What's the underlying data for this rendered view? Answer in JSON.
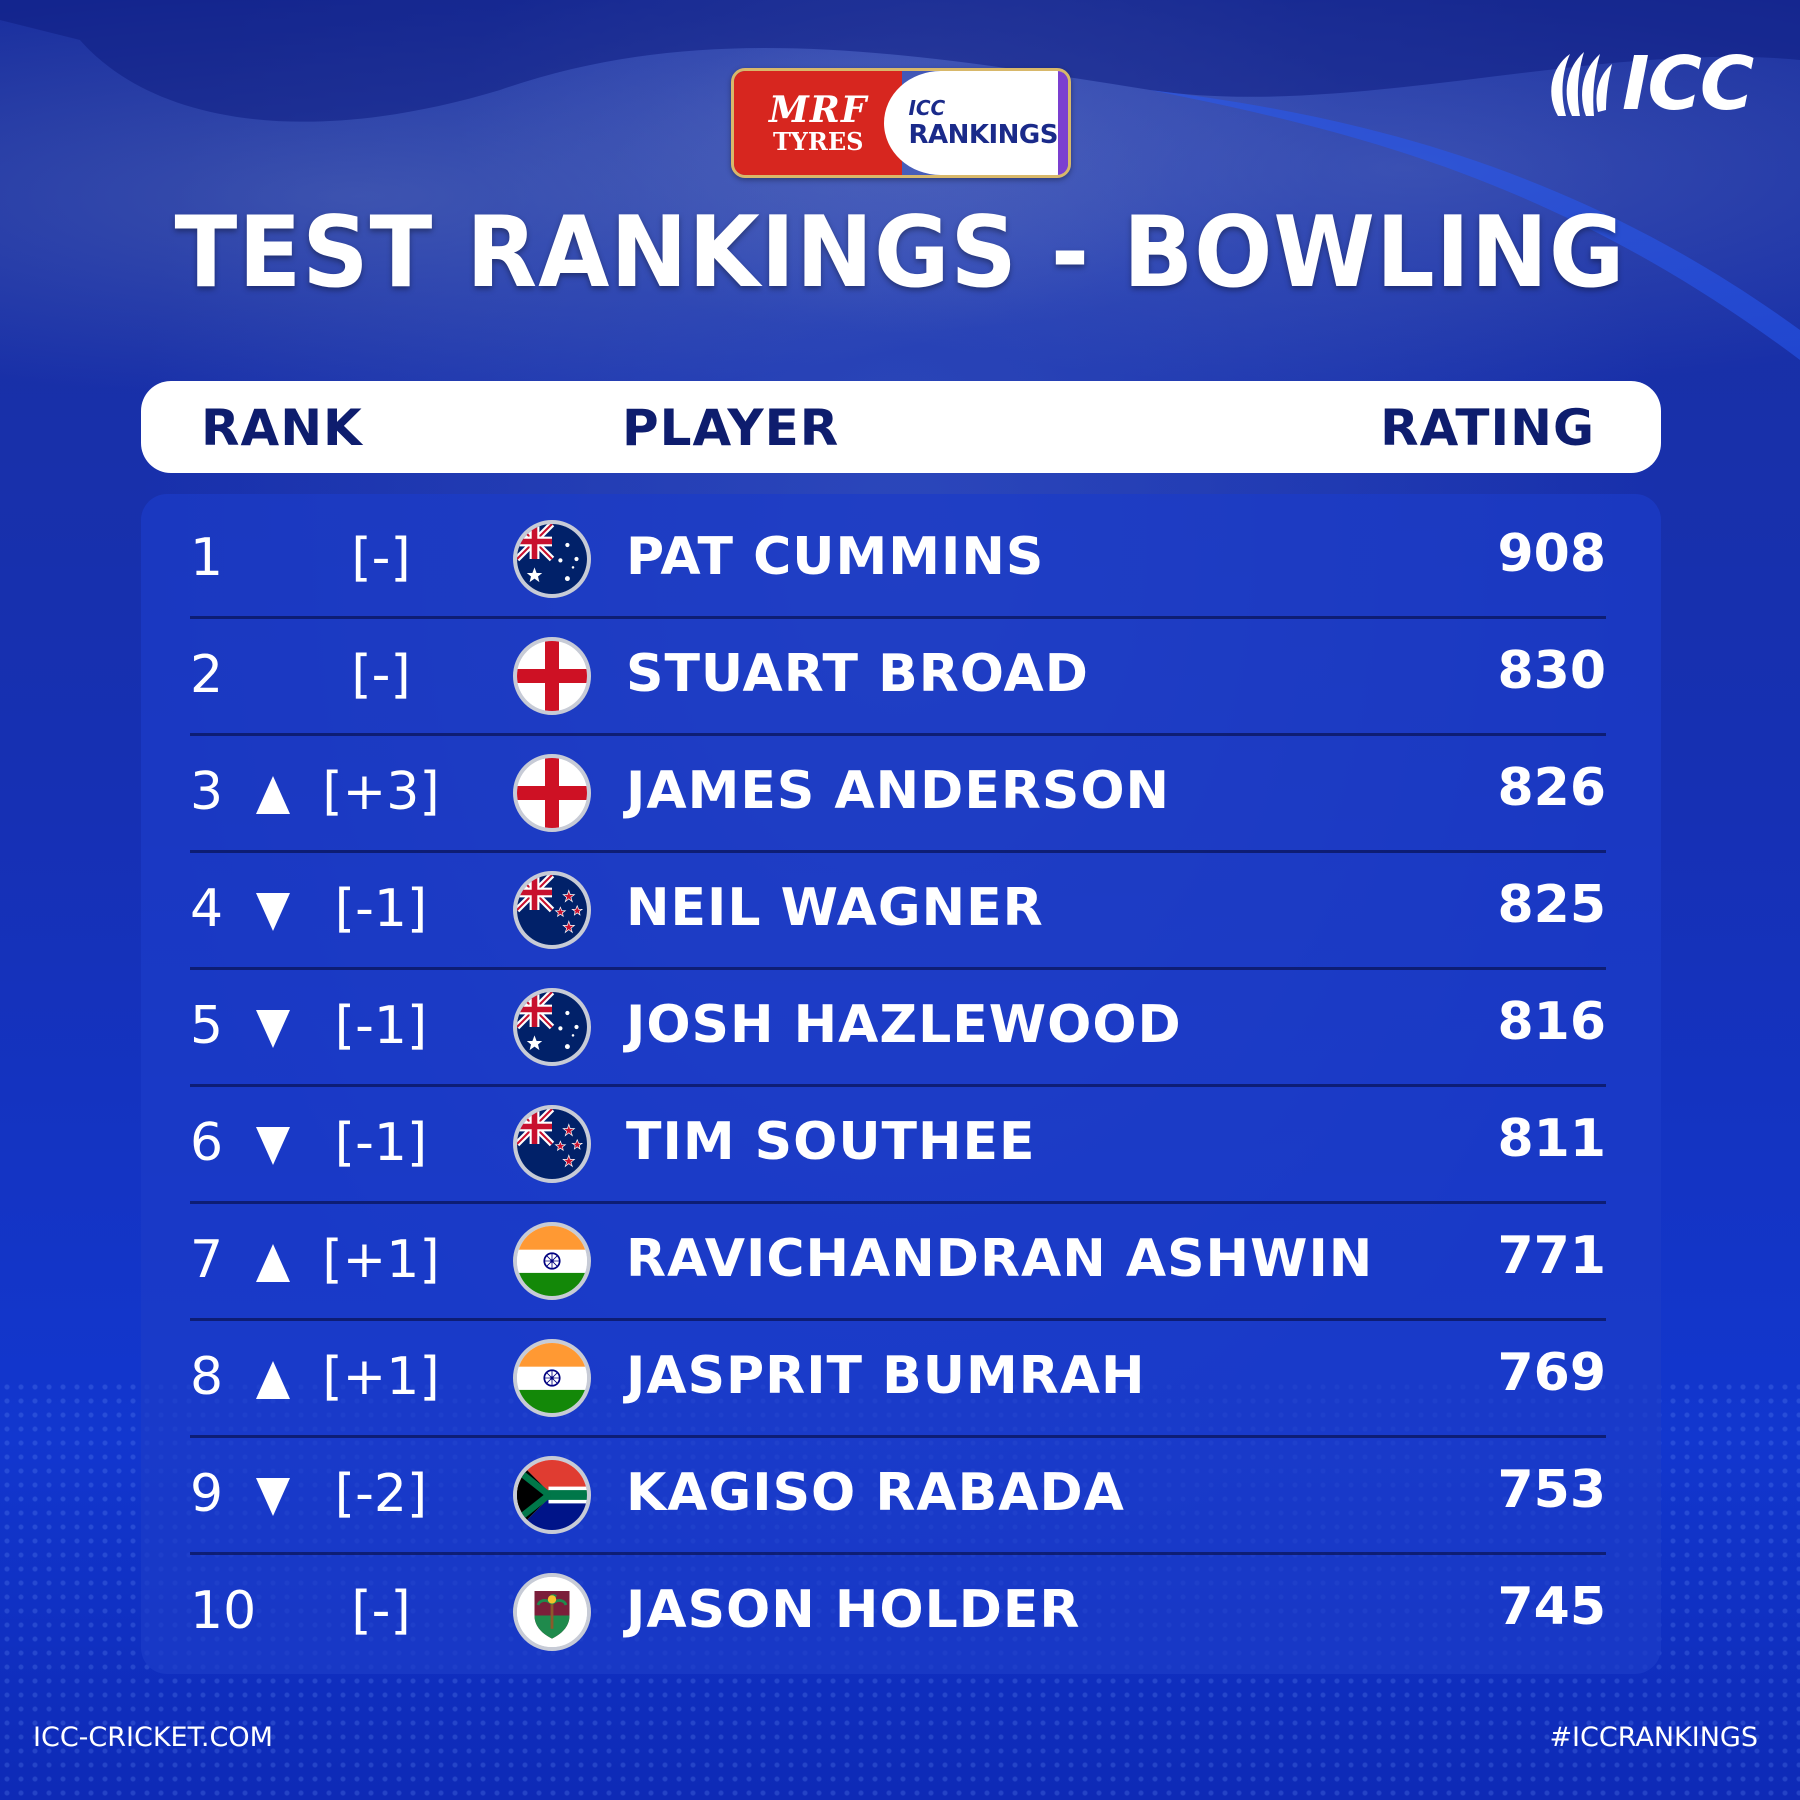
{
  "brand": {
    "sponsor_top": "MRF",
    "sponsor_bottom": "TYRES",
    "badge_icc": "ICC",
    "badge_rankings": "RANKINGS",
    "logo_text": "ICC"
  },
  "title": "TEST RANKINGS - BOWLING",
  "columns": {
    "rank": "RANK",
    "player": "PLAYER",
    "rating": "RATING"
  },
  "rows": [
    {
      "rank": "1",
      "movement": "none",
      "change": "[-]",
      "country": "australia",
      "player": "PAT CUMMINS",
      "rating": "908"
    },
    {
      "rank": "2",
      "movement": "none",
      "change": "[-]",
      "country": "england",
      "player": "STUART BROAD",
      "rating": "830"
    },
    {
      "rank": "3",
      "movement": "up",
      "change": "[+3]",
      "country": "england",
      "player": "JAMES ANDERSON",
      "rating": "826"
    },
    {
      "rank": "4",
      "movement": "down",
      "change": "[-1]",
      "country": "new-zealand",
      "player": "NEIL WAGNER",
      "rating": "825"
    },
    {
      "rank": "5",
      "movement": "down",
      "change": "[-1]",
      "country": "australia",
      "player": "JOSH HAZLEWOOD",
      "rating": "816"
    },
    {
      "rank": "6",
      "movement": "down",
      "change": "[-1]",
      "country": "new-zealand",
      "player": "TIM SOUTHEE",
      "rating": "811"
    },
    {
      "rank": "7",
      "movement": "up",
      "change": "[+1]",
      "country": "india",
      "player": "RAVICHANDRAN ASHWIN",
      "rating": "771"
    },
    {
      "rank": "8",
      "movement": "up",
      "change": "[+1]",
      "country": "india",
      "player": "JASPRIT BUMRAH",
      "rating": "769"
    },
    {
      "rank": "9",
      "movement": "down",
      "change": "[-2]",
      "country": "south-africa",
      "player": "KAGISO RABADA",
      "rating": "753"
    },
    {
      "rank": "10",
      "movement": "none",
      "change": "[-]",
      "country": "west-indies",
      "player": "JASON HOLDER",
      "rating": "745"
    }
  ],
  "footer": {
    "website": "ICC-CRICKET.COM",
    "hashtag": "#ICCRANKINGS"
  },
  "colors": {
    "background": "#1630b4",
    "header_text": "#0e1d6e",
    "badge_red": "#d7261f"
  }
}
